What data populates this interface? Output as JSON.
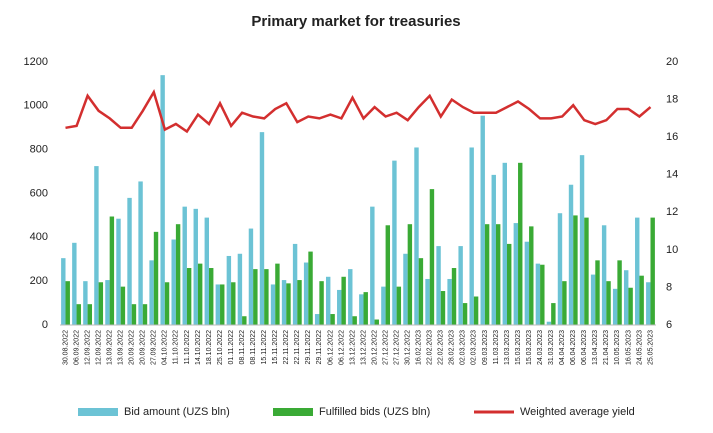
{
  "chart_data": {
    "type": "bar_line",
    "title": "Primary market for treasuries",
    "categories": [
      "30.08.2022",
      "06.09.2022",
      "12.09.2022",
      "12.09.2022",
      "13.09.2022",
      "13.09.2022",
      "20.09.2022",
      "20.09.2022",
      "27.09.2022",
      "04.10.2022",
      "11.10.2022",
      "11.10.2022",
      "14.10.2022",
      "18.10.2022",
      "25.10.2022",
      "01.11.2022",
      "08.11.2022",
      "08.11.2022",
      "15.11.2022",
      "15.11.2022",
      "22.11.2022",
      "22.11.2022",
      "29.11.2022",
      "29.11.2022",
      "06.12.2022",
      "06.12.2022",
      "13.12.2022",
      "13.12.2022",
      "20.12.2022",
      "27.12.2022",
      "27.12.2022",
      "30.12.2022",
      "16.02.2023",
      "22.02.2023",
      "22.02.2023",
      "28.02.2023",
      "02.03.2023",
      "02.03.2023",
      "09.03.2023",
      "11.03.2023",
      "13.03.2023",
      "15.03.2023",
      "15.03.2023",
      "24.03.2023",
      "31.03.2023",
      "04.04.2023",
      "06.04.2023",
      "06.04.2023",
      "13.04.2023",
      "21.04.2023",
      "10.05.2023",
      "16.05.2023",
      "24.05.2023",
      "25.05.2023"
    ],
    "series": [
      {
        "name": "Bid amount (UZS bln)",
        "color": "#6cc3d5",
        "values": [
          305,
          375,
          200,
          725,
          205,
          485,
          580,
          655,
          295,
          1140,
          390,
          540,
          530,
          490,
          185,
          315,
          325,
          440,
          880,
          185,
          205,
          370,
          285,
          50,
          220,
          160,
          255,
          140,
          540,
          175,
          750,
          325,
          810,
          210,
          360,
          210,
          360,
          810,
          955,
          685,
          740,
          465,
          380,
          280,
          15,
          510,
          640,
          775,
          230,
          455,
          165,
          250,
          490,
          195
        ]
      },
      {
        "name": "Fulfilled bids (UZS bln)",
        "color": "#3aaa35",
        "values": [
          200,
          95,
          95,
          195,
          495,
          175,
          95,
          95,
          425,
          195,
          460,
          260,
          280,
          260,
          185,
          195,
          40,
          255,
          255,
          280,
          190,
          205,
          335,
          200,
          50,
          220,
          40,
          150,
          25,
          455,
          175,
          460,
          305,
          620,
          155,
          260,
          100,
          130,
          460,
          460,
          370,
          740,
          450,
          275,
          100,
          200,
          500,
          490,
          295,
          200,
          295,
          170,
          225,
          490
        ]
      },
      {
        "name": "Weighted average yield",
        "color": "#d32f2f",
        "axis": "y2",
        "values": [
          16.5,
          16.6,
          18.2,
          17.4,
          17.0,
          16.5,
          16.5,
          17.4,
          18.4,
          16.4,
          16.7,
          16.3,
          17.2,
          16.7,
          17.8,
          16.6,
          17.3,
          17.1,
          17.0,
          17.5,
          17.8,
          16.8,
          17.1,
          17.0,
          17.2,
          17.0,
          18.1,
          17.0,
          17.6,
          17.1,
          17.3,
          16.9,
          17.6,
          18.2,
          17.1,
          18.0,
          17.6,
          17.3,
          17.3,
          17.3,
          17.6,
          17.9,
          17.5,
          17.0,
          17.0,
          17.1,
          17.7,
          16.9,
          16.7,
          16.9,
          17.5,
          17.5,
          17.1,
          17.6
        ]
      }
    ],
    "ylim": [
      0,
      1200
    ],
    "yticks": [
      0,
      200,
      400,
      600,
      800,
      1000,
      1200
    ],
    "y2lim": [
      6,
      20
    ],
    "y2ticks": [
      6,
      8,
      10,
      12,
      14,
      16,
      18,
      20
    ],
    "legend": "bottom"
  }
}
